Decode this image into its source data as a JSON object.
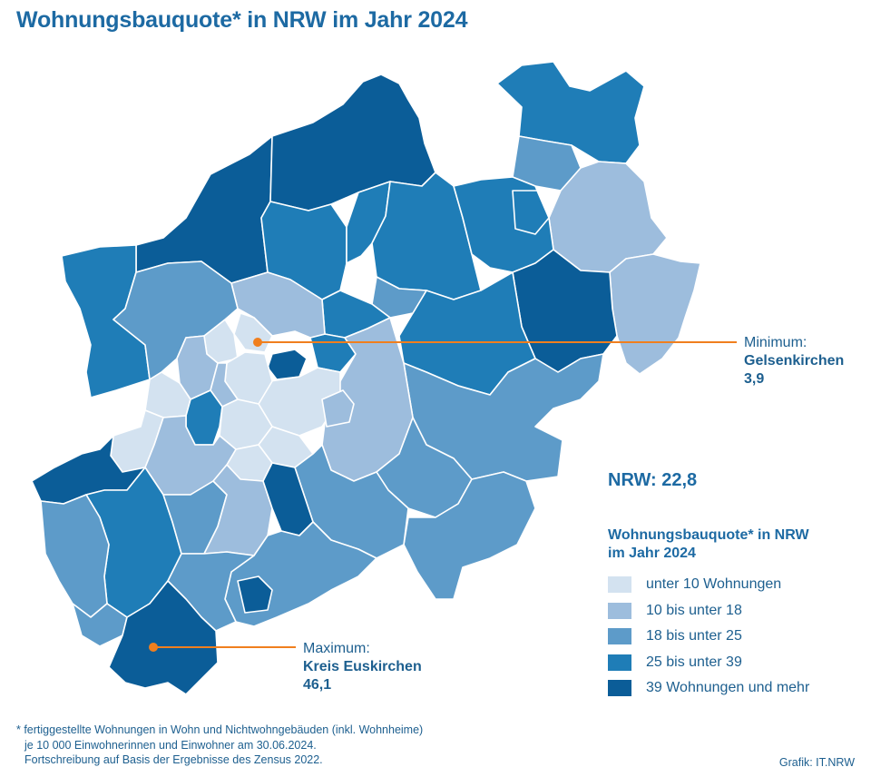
{
  "title": "Wohnungsbauquote* in NRW im Jahr 2024",
  "minimum": {
    "label": "Minimum:",
    "region": "Gelsenkirchen",
    "value": "3,9"
  },
  "maximum": {
    "label": "Maximum:",
    "region": "Kreis Euskirchen",
    "value": "46,1"
  },
  "nrw_total": "NRW: 22,8",
  "legend": {
    "title_line1": "Wohnungsbauquote* in NRW",
    "title_line2": "im Jahr 2024",
    "items": [
      {
        "label": "unter 10 Wohnungen",
        "color": "#d3e2f0"
      },
      {
        "label": "10 bis unter 18",
        "color": "#9dbddd"
      },
      {
        "label": "18 bis unter 25",
        "color": "#5d9bc9"
      },
      {
        "label": "25 bis unter 39",
        "color": "#1f7db7"
      },
      {
        "label": "39 Wohnungen und mehr",
        "color": "#0b5d98"
      }
    ]
  },
  "colors": {
    "accent": "#f07f1e",
    "title": "#1d6aa3",
    "border": "#ffffff"
  },
  "footnote": {
    "line1": "* fertiggestellte Wohnungen in Wohn und Nichtwohngebäuden (inkl. Wohnheime)",
    "line2": "je 10 000 Einwohnerinnen und Einwohner am 30.06.2024.",
    "line3": "Fortschreibung auf Basis der Ergebnisse des Zensus 2022."
  },
  "credit": "Grafik: IT.NRW"
}
